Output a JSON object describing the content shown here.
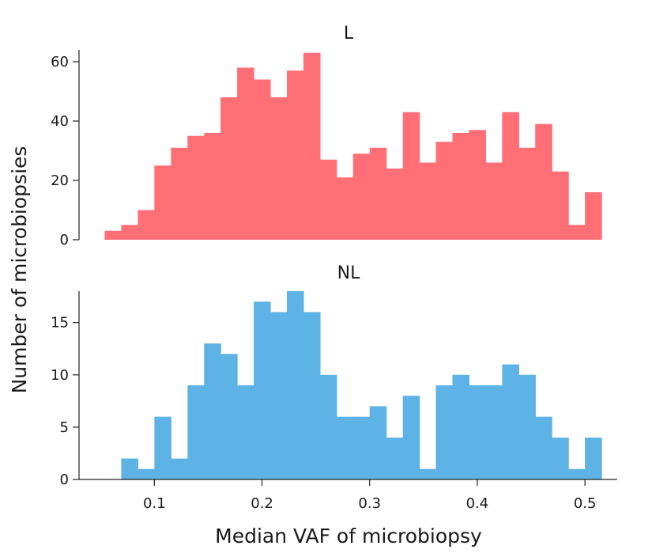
{
  "chart_data": {
    "type": "bar",
    "ylabel": "Number of microbiopsies",
    "xlabel": "Median VAF of microbiopsy",
    "x_ticks": [
      0.1,
      0.2,
      0.3,
      0.4,
      0.5
    ],
    "x_tick_labels": [
      "0.1",
      "0.2",
      "0.3",
      "0.4",
      "0.5"
    ],
    "xlim": [
      0.03,
      0.53
    ],
    "bin_width": 0.01538,
    "panels": [
      {
        "title": "L",
        "color": "#ff6f75",
        "ylim": [
          0,
          64
        ],
        "y_ticks": [
          0,
          20,
          40,
          60
        ],
        "y_tick_labels": [
          "0",
          "20",
          "40",
          "60"
        ],
        "bin_starts": [
          0.0538,
          0.0692,
          0.0846,
          0.1,
          0.1154,
          0.1308,
          0.1462,
          0.1615,
          0.1769,
          0.1923,
          0.2077,
          0.2231,
          0.2385,
          0.2538,
          0.2692,
          0.2846,
          0.3,
          0.3154,
          0.3308,
          0.3462,
          0.3615,
          0.3769,
          0.3923,
          0.4077,
          0.4231,
          0.4385,
          0.4538,
          0.4692,
          0.4846,
          0.5
        ],
        "values": [
          3,
          5,
          10,
          25,
          31,
          35,
          36,
          48,
          58,
          54,
          48,
          57,
          63,
          27,
          21,
          29,
          31,
          24,
          43,
          26,
          33,
          36,
          37,
          26,
          43,
          31,
          39,
          23,
          5,
          16
        ]
      },
      {
        "title": "NL",
        "color": "#5eb3e6",
        "ylim": [
          0,
          18
        ],
        "y_ticks": [
          0,
          5,
          10,
          15
        ],
        "y_tick_labels": [
          "0",
          "5",
          "10",
          "15"
        ],
        "bin_starts": [
          0.0692,
          0.0846,
          0.1,
          0.1154,
          0.1308,
          0.1462,
          0.1615,
          0.1769,
          0.1923,
          0.2077,
          0.2231,
          0.2385,
          0.2538,
          0.2692,
          0.2846,
          0.3,
          0.3154,
          0.3308,
          0.3462,
          0.3615,
          0.3769,
          0.3923,
          0.4077,
          0.4231,
          0.4385,
          0.4538,
          0.4692,
          0.4846,
          0.5
        ],
        "values": [
          2,
          1,
          6,
          2,
          9,
          13,
          12,
          9,
          17,
          16,
          18,
          16,
          10,
          6,
          6,
          7,
          4,
          8,
          1,
          9,
          10,
          9,
          9,
          11,
          10,
          6,
          4,
          1,
          4
        ]
      }
    ]
  }
}
